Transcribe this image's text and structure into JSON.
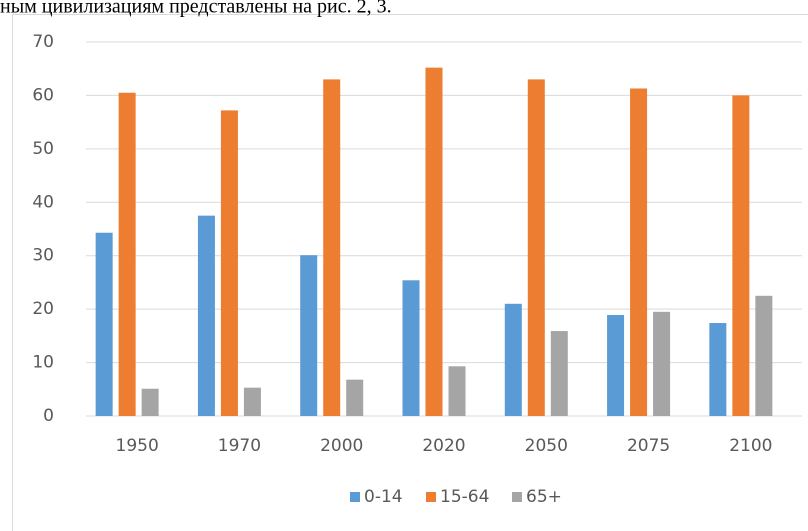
{
  "header_text": "ным цивилизациям представлены на рис. 2, 3.",
  "chart_data": {
    "type": "bar",
    "categories": [
      "1950",
      "1970",
      "2000",
      "2020",
      "2050",
      "2075",
      "2100"
    ],
    "series": [
      {
        "name": "0-14",
        "color": "#5b9bd5",
        "values": [
          34.3,
          37.5,
          30.1,
          25.4,
          21,
          18.9,
          17.4
        ]
      },
      {
        "name": "15-64",
        "color": "#ed7d31",
        "values": [
          60.5,
          57.2,
          63,
          65.2,
          63,
          61.3,
          60
        ]
      },
      {
        "name": "65+",
        "color": "#a5a5a5",
        "values": [
          5.1,
          5.3,
          6.8,
          9.3,
          15.9,
          19.5,
          22.5
        ]
      }
    ],
    "ylim": [
      0,
      70
    ],
    "yticks": [
      0,
      10,
      20,
      30,
      40,
      50,
      60,
      70
    ],
    "grid": true,
    "legend": "bottom"
  }
}
